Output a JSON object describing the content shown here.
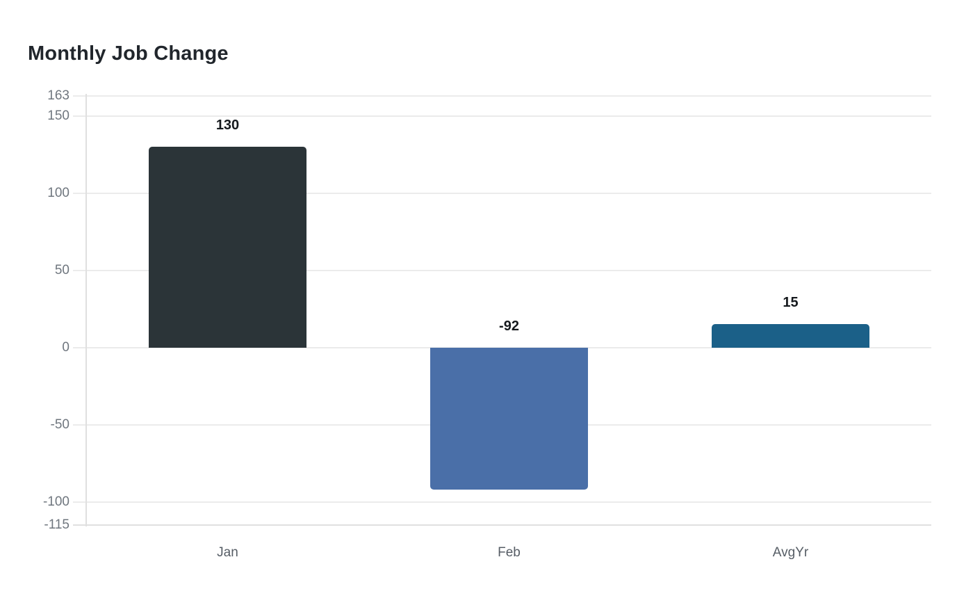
{
  "title": "Monthly Job Change",
  "chart_data": {
    "type": "bar",
    "title": "Monthly Job Change",
    "categories": [
      "Jan",
      "Feb",
      "AvgYr"
    ],
    "values": [
      130,
      -92,
      15
    ],
    "value_labels": [
      "130",
      "-92",
      "15"
    ],
    "bar_colors": [
      "#2b3438",
      "#4a6fa8",
      "#1b6088"
    ],
    "yticks": [
      163,
      150,
      100,
      50,
      0,
      -50,
      -100,
      -115
    ],
    "ylim": [
      -115,
      163
    ],
    "xlabel": "",
    "ylabel": "",
    "grid": true,
    "legend": false,
    "baseline": 0
  },
  "colors": {
    "title": "#21262c",
    "tick_label": "#6f767e",
    "category_label": "#565d65",
    "value_label": "#15191d",
    "gridline": "#ebebeb",
    "axis_line": "#e0e0e0",
    "background": "#ffffff"
  }
}
